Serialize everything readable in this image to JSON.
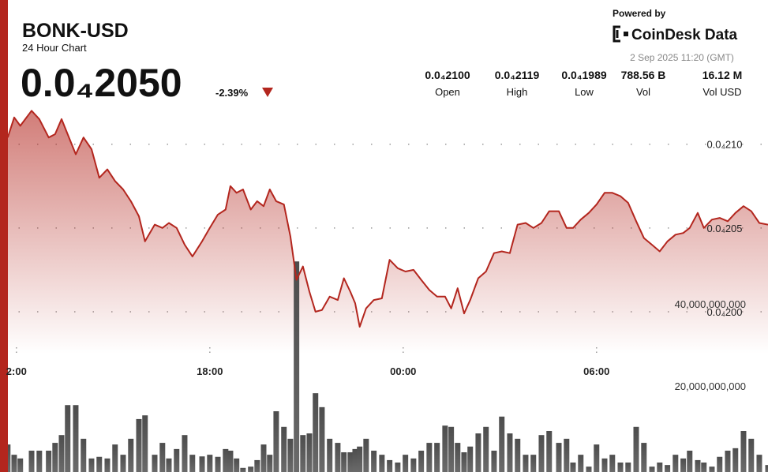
{
  "header": {
    "title": "BONK-USD",
    "subtitle": "24 Hour Chart",
    "price": "0.0₄2050",
    "change": "-2.39%",
    "powered_by": "Powered by",
    "brand": "CoinDesk Data",
    "timestamp": "2 Sep 2025 11:20 (GMT)",
    "stats": [
      {
        "value": "0.0₄2100",
        "label": "Open"
      },
      {
        "value": "0.0₄2119",
        "label": "High"
      },
      {
        "value": "0.0₄1989",
        "label": "Low"
      },
      {
        "value": "788.56 B",
        "label": "Vol"
      },
      {
        "value": "16.12 M",
        "label": "Vol USD"
      }
    ]
  },
  "chart_data": {
    "type": "line",
    "x": [
      -0.27,
      -0.07,
      0.12,
      0.47,
      0.71,
      1.0,
      1.2,
      1.4,
      1.59,
      1.84,
      2.08,
      2.33,
      2.57,
      2.82,
      3.06,
      3.31,
      3.55,
      3.8,
      3.99,
      4.29,
      4.53,
      4.73,
      4.97,
      5.22,
      5.46,
      5.76,
      6.0,
      6.25,
      6.49,
      6.64,
      6.83,
      7.03,
      7.27,
      7.47,
      7.67,
      7.86,
      8.06,
      8.3,
      8.5,
      8.69,
      8.89,
      9.09,
      9.28,
      9.48,
      9.72,
      9.97,
      10.16,
      10.36,
      10.51,
      10.65,
      10.85,
      11.09,
      11.34,
      11.58,
      11.83,
      12.07,
      12.32,
      12.56,
      12.81,
      13.05,
      13.3,
      13.49,
      13.69,
      13.89,
      14.08,
      14.33,
      14.57,
      14.82,
      15.06,
      15.31,
      15.55,
      15.8,
      16.04,
      16.29,
      16.53,
      16.83,
      17.07,
      17.27,
      17.51,
      17.76,
      18.0,
      18.25,
      18.49,
      18.74,
      18.98,
      19.23,
      19.47,
      19.72,
      19.96,
      20.2,
      20.45,
      20.69,
      20.89,
      21.14,
      21.33,
      21.58,
      21.82,
      22.07,
      22.31,
      22.56,
      22.8,
      23.05,
      23.32
    ],
    "xlim": [
      -0.51,
      23.32
    ],
    "xticks": [
      {
        "value": 0,
        "label": "2:00"
      },
      {
        "value": 6,
        "label": "18:00"
      },
      {
        "value": 12,
        "label": "00:00"
      },
      {
        "value": 18,
        "label": "06:00"
      }
    ],
    "ylim": [
      1.975e-05,
      2.155e-05
    ],
    "yticks": [
      {
        "value": 2e-05,
        "label": "0.0₄200"
      },
      {
        "value": 2.05e-05,
        "label": "0.0₄205"
      },
      {
        "value": 2.1e-05,
        "label": "0.0₄210"
      }
    ],
    "y2lim": [
      0,
      102300000000
    ],
    "y2ticks": [
      {
        "value": 20000000000,
        "label": "20,000,000,000"
      },
      {
        "value": 40000000000,
        "label": "40,000,000,000"
      }
    ],
    "grid": true,
    "series": [
      {
        "color": "#b3261e",
        "values": [
          2.104e-05,
          2.116e-05,
          2.111e-05,
          2.12e-05,
          2.115e-05,
          2.104e-05,
          2.106e-05,
          2.115e-05,
          2.106e-05,
          2.094e-05,
          2.104e-05,
          2.097e-05,
          2.08e-05,
          2.085e-05,
          2.078e-05,
          2.073e-05,
          2.066e-05,
          2.057e-05,
          2.042e-05,
          2.052e-05,
          2.05e-05,
          2.053e-05,
          2.05e-05,
          2.04e-05,
          2.033e-05,
          2.042e-05,
          2.05e-05,
          2.058e-05,
          2.061e-05,
          2.075e-05,
          2.071e-05,
          2.073e-05,
          2.061e-05,
          2.066e-05,
          2.063e-05,
          2.073e-05,
          2.066e-05,
          2.064e-05,
          2.045e-05,
          2.019e-05,
          2.027e-05,
          2.012e-05,
          2e-05,
          2.001e-05,
          2.009e-05,
          2.007e-05,
          2.02e-05,
          2.012e-05,
          2.005e-05,
          1.991e-05,
          2.002e-05,
          2.007e-05,
          2.008e-05,
          2.031e-05,
          2.026e-05,
          2.024e-05,
          2.025e-05,
          2.019e-05,
          2.013e-05,
          2.009e-05,
          2.009e-05,
          2.002e-05,
          2.014e-05,
          1.999e-05,
          2.007e-05,
          2.02e-05,
          2.024e-05,
          2.035e-05,
          2.036e-05,
          2.035e-05,
          2.052e-05,
          2.053e-05,
          2.05e-05,
          2.053e-05,
          2.06e-05,
          2.06e-05,
          2.05e-05,
          2.05e-05,
          2.055e-05,
          2.059e-05,
          2.064e-05,
          2.071e-05,
          2.071e-05,
          2.069e-05,
          2.065e-05,
          2.054e-05,
          2.044e-05,
          2.04e-05,
          2.036e-05,
          2.042e-05,
          2.046e-05,
          2.047e-05,
          2.05e-05,
          2.059e-05,
          2.05e-05,
          2.055e-05,
          2.056e-05,
          2.054e-05,
          2.059e-05,
          2.063e-05,
          2.06e-05,
          2.053e-05,
          2.052e-05
        ]
      },
      {
        "color": "#4d4d4d",
        "type": "bar",
        "axis": "y2",
        "values": [
          6700000000,
          4200000000,
          3300000000,
          5200000000,
          5200000000,
          5200000000,
          7100000000,
          9000000000,
          16300000000,
          16300000000,
          8100000000,
          3300000000,
          3700000000,
          3300000000,
          6700000000,
          4200000000,
          8100000000,
          12900000000,
          13800000000,
          4200000000,
          7100000000,
          3300000000,
          5600000000,
          9000000000,
          4200000000,
          3800000000,
          4200000000,
          3700000000,
          5600000000,
          5200000000,
          3300000000,
          1000000000,
          1300000000,
          2900000000,
          6700000000,
          4200000000,
          14800000000,
          11000000000,
          8100000000,
          51300000000,
          9000000000,
          9400000000,
          19200000000,
          15800000000,
          8100000000,
          7100000000,
          4800000000,
          4800000000,
          5600000000,
          6200000000,
          8100000000,
          5200000000,
          4200000000,
          2900000000,
          2300000000,
          4200000000,
          3300000000,
          5200000000,
          7100000000,
          7100000000,
          11300000000,
          11000000000,
          7100000000,
          4800000000,
          6200000000,
          9400000000,
          11000000000,
          5200000000,
          13500000000,
          9400000000,
          8100000000,
          4200000000,
          4200000000,
          9000000000,
          10000000000,
          7100000000,
          8100000000,
          2300000000,
          4200000000,
          1300000000,
          6700000000,
          3300000000,
          4200000000,
          2300000000,
          2300000000,
          11000000000,
          7100000000,
          1300000000,
          2300000000,
          1700000000,
          4200000000,
          3300000000,
          5200000000,
          2900000000,
          2300000000,
          1300000000,
          3700000000,
          5200000000,
          5800000000,
          10000000000,
          8100000000,
          4200000000,
          1700000000
        ]
      }
    ]
  }
}
